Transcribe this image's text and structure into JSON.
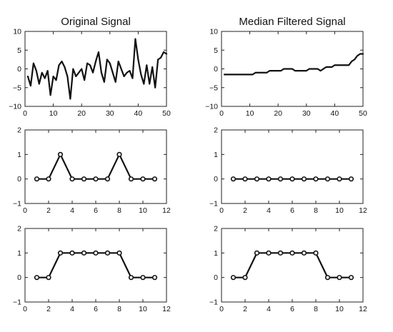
{
  "chart_data": [
    {
      "type": "line",
      "title": "Original Signal",
      "xlim": [
        0,
        50
      ],
      "ylim": [
        -10,
        10
      ],
      "xticks": [
        0,
        10,
        20,
        30,
        40,
        50
      ],
      "yticks": [
        -10,
        -5,
        0,
        5,
        10
      ],
      "markers": false,
      "series": [
        {
          "x": [
            1,
            2,
            3,
            4,
            5,
            6,
            7,
            8,
            9,
            10,
            11,
            12,
            13,
            14,
            15,
            16,
            17,
            18,
            19,
            20,
            21,
            22,
            23,
            24,
            25,
            26,
            27,
            28,
            29,
            30,
            31,
            32,
            33,
            34,
            35,
            36,
            37,
            38,
            39,
            40,
            41,
            42,
            43,
            44,
            45,
            46,
            47,
            48,
            49,
            50
          ],
          "y": [
            -2,
            -4.5,
            1.5,
            -0.5,
            -4,
            -1,
            -2.5,
            -0.5,
            -7,
            -2,
            -3,
            1,
            2,
            0.5,
            -2,
            -8,
            0,
            -2,
            -1,
            0,
            -3,
            1.5,
            1,
            -1,
            2,
            4.5,
            -1,
            -3.5,
            2.5,
            1.5,
            -1,
            -3.5,
            2,
            0,
            -2,
            -1,
            -0.5,
            -2.5,
            8,
            2.5,
            -1.5,
            -4,
            1,
            -4,
            0.5,
            -5,
            2.5,
            3,
            4.5,
            4
          ]
        }
      ]
    },
    {
      "type": "line",
      "title": "Median Filtered Signal",
      "xlim": [
        0,
        50
      ],
      "ylim": [
        -10,
        10
      ],
      "xticks": [
        0,
        10,
        20,
        30,
        40,
        50
      ],
      "yticks": [
        -10,
        -5,
        0,
        5,
        10
      ],
      "markers": false,
      "series": [
        {
          "x": [
            1,
            2,
            3,
            4,
            5,
            6,
            7,
            8,
            9,
            10,
            11,
            12,
            13,
            14,
            15,
            16,
            17,
            18,
            19,
            20,
            21,
            22,
            23,
            24,
            25,
            26,
            27,
            28,
            29,
            30,
            31,
            32,
            33,
            34,
            35,
            36,
            37,
            38,
            39,
            40,
            41,
            42,
            43,
            44,
            45,
            46,
            47,
            48,
            49,
            50
          ],
          "y": [
            -1.5,
            -1.5,
            -1.5,
            -1.5,
            -1.5,
            -1.5,
            -1.5,
            -1.5,
            -1.5,
            -1.5,
            -1.5,
            -1,
            -1,
            -1,
            -1,
            -1,
            -0.5,
            -0.5,
            -0.5,
            -0.5,
            -0.5,
            0,
            0,
            0,
            0,
            -0.5,
            -0.5,
            -0.5,
            -0.5,
            -0.5,
            0,
            0,
            0,
            0,
            -0.5,
            0,
            0.5,
            0.5,
            0.5,
            1,
            1,
            1,
            1,
            1,
            1,
            2,
            2.5,
            3.5,
            4,
            4
          ]
        }
      ]
    },
    {
      "type": "line",
      "title": "",
      "xlim": [
        0,
        12
      ],
      "ylim": [
        -1,
        2
      ],
      "xticks": [
        0,
        2,
        4,
        6,
        8,
        10,
        12
      ],
      "yticks": [
        -1,
        0,
        1,
        2
      ],
      "markers": true,
      "series": [
        {
          "x": [
            1,
            2,
            3,
            4,
            5,
            6,
            7,
            8,
            9,
            10,
            11
          ],
          "y": [
            0,
            0,
            1,
            0,
            0,
            0,
            0,
            1,
            0,
            0,
            0
          ]
        }
      ]
    },
    {
      "type": "line",
      "title": "",
      "xlim": [
        0,
        12
      ],
      "ylim": [
        -1,
        2
      ],
      "xticks": [
        0,
        2,
        4,
        6,
        8,
        10,
        12
      ],
      "yticks": [
        -1,
        0,
        1,
        2
      ],
      "markers": true,
      "series": [
        {
          "x": [
            1,
            2,
            3,
            4,
            5,
            6,
            7,
            8,
            9,
            10,
            11
          ],
          "y": [
            0,
            0,
            0,
            0,
            0,
            0,
            0,
            0,
            0,
            0,
            0
          ]
        }
      ]
    },
    {
      "type": "line",
      "title": "",
      "xlim": [
        0,
        12
      ],
      "ylim": [
        -1,
        2
      ],
      "xticks": [
        0,
        2,
        4,
        6,
        8,
        10,
        12
      ],
      "yticks": [
        -1,
        0,
        1,
        2
      ],
      "markers": true,
      "series": [
        {
          "x": [
            1,
            2,
            3,
            4,
            5,
            6,
            7,
            8,
            9,
            10,
            11
          ],
          "y": [
            0,
            0,
            1,
            1,
            1,
            1,
            1,
            1,
            0,
            0,
            0
          ]
        }
      ]
    },
    {
      "type": "line",
      "title": "",
      "xlim": [
        0,
        12
      ],
      "ylim": [
        -1,
        2
      ],
      "xticks": [
        0,
        2,
        4,
        6,
        8,
        10,
        12
      ],
      "yticks": [
        -1,
        0,
        1,
        2
      ],
      "markers": true,
      "series": [
        {
          "x": [
            1,
            2,
            3,
            4,
            5,
            6,
            7,
            8,
            9,
            10,
            11
          ],
          "y": [
            0,
            0,
            1,
            1,
            1,
            1,
            1,
            1,
            0,
            0,
            0
          ]
        }
      ]
    }
  ]
}
